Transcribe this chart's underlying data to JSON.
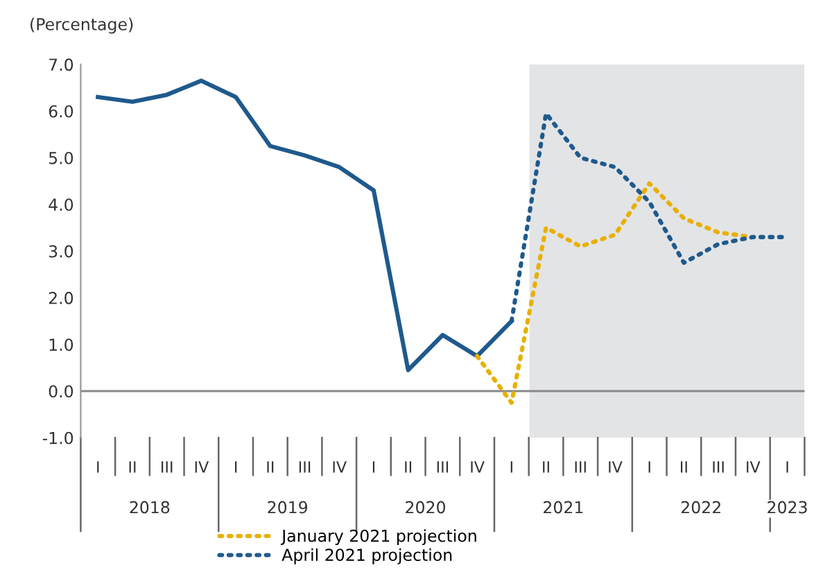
{
  "chart_data": {
    "type": "line",
    "ylabel": "(Percentage)",
    "categories": [
      "I",
      "II",
      "III",
      "IV",
      "I",
      "II",
      "III",
      "IV",
      "I",
      "II",
      "III",
      "IV",
      "I",
      "II",
      "III",
      "IV",
      "I",
      "II",
      "III",
      "IV",
      "I"
    ],
    "ylim": [
      -1,
      7
    ],
    "yticks": [
      {
        "value": -1,
        "label": "-1.0"
      },
      {
        "value": 0,
        "label": "0.0"
      },
      {
        "value": 1,
        "label": "1.0"
      },
      {
        "value": 2,
        "label": "2.0"
      },
      {
        "value": 3,
        "label": "3.0"
      },
      {
        "value": 4,
        "label": "4.0"
      },
      {
        "value": 5,
        "label": "5.0"
      },
      {
        "value": 6,
        "label": "6.0"
      },
      {
        "value": 7,
        "label": "7.0"
      }
    ],
    "series": [
      {
        "color": "#1f5a8c",
        "line_style": "solid",
        "values": [
          6.3,
          6.2,
          6.35,
          6.65,
          6.3,
          5.25,
          5.05,
          4.8,
          4.3,
          0.45,
          1.2,
          0.75,
          1.5,
          null,
          null,
          null,
          null,
          null,
          null,
          null,
          null
        ]
      },
      {
        "name": "January 2021 projection",
        "color": "#e8b000",
        "line_style": "dotted",
        "values": [
          null,
          null,
          null,
          null,
          null,
          null,
          null,
          null,
          null,
          null,
          null,
          0.75,
          -0.25,
          3.5,
          3.1,
          3.35,
          4.45,
          3.7,
          3.4,
          3.3,
          null
        ]
      },
      {
        "name": "April 2021 projection",
        "color": "#1f5a8c",
        "line_style": "dotted",
        "values": [
          null,
          null,
          null,
          null,
          null,
          null,
          null,
          null,
          null,
          null,
          null,
          null,
          1.5,
          5.95,
          5.0,
          4.8,
          4.05,
          2.75,
          3.15,
          3.3,
          3.3
        ]
      }
    ],
    "ref_lines": [
      {
        "axis": "y",
        "value": 0,
        "color": "#888888",
        "line_style": "solid"
      }
    ],
    "annotations": [
      "2018",
      "2019",
      "2020",
      "2021",
      "2022",
      "2023"
    ],
    "legend": "bottom",
    "grid": false,
    "marker": "none"
  }
}
